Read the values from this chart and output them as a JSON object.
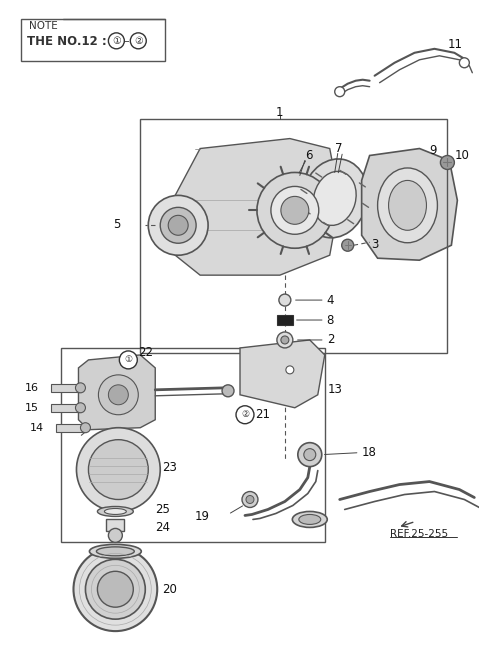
{
  "bg_color": "#ffffff",
  "line_color": "#333333",
  "note_text": "NOTE",
  "note_sub": "THE NO.12 : ①–②",
  "ref_text": "REF.25-255"
}
